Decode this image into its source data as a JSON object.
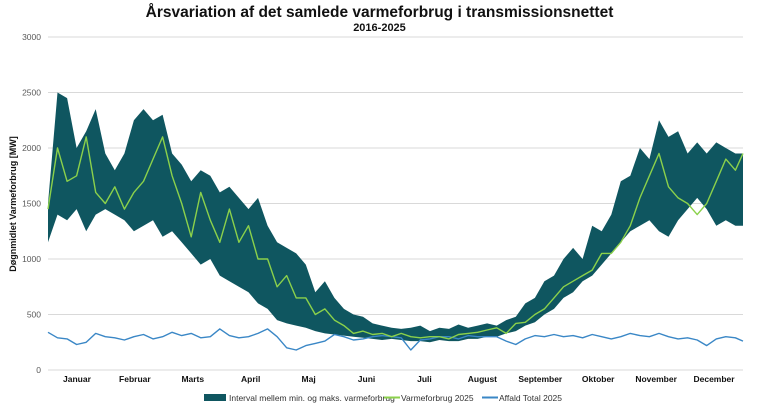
{
  "chart_data": {
    "type": "area",
    "title": "Årsvariation af det samlede varmeforbrug i transmissionsnettet",
    "subtitle": "2016-2025",
    "xlabel": "",
    "ylabel": "Døgnmidlet Varmeforbrug [MW]",
    "ylim": [
      0,
      3000
    ],
    "yticks": [
      0,
      500,
      1000,
      1500,
      2000,
      2500,
      3000
    ],
    "xlim": [
      1,
      365
    ],
    "grid": true,
    "legend_position": "bottom",
    "months": [
      "Januar",
      "Februar",
      "Marts",
      "April",
      "Maj",
      "Juni",
      "Juli",
      "August",
      "September",
      "Oktober",
      "November",
      "December"
    ],
    "x_day": [
      1,
      6,
      11,
      16,
      21,
      26,
      31,
      36,
      41,
      46,
      51,
      56,
      61,
      66,
      71,
      76,
      81,
      86,
      91,
      96,
      101,
      106,
      111,
      116,
      121,
      126,
      131,
      136,
      141,
      146,
      151,
      156,
      161,
      166,
      171,
      176,
      181,
      186,
      191,
      196,
      201,
      206,
      211,
      216,
      221,
      226,
      231,
      236,
      241,
      246,
      251,
      256,
      261,
      266,
      271,
      276,
      281,
      286,
      291,
      296,
      301,
      306,
      311,
      316,
      321,
      326,
      331,
      336,
      341,
      346,
      351,
      356,
      361,
      365
    ],
    "series": [
      {
        "name": "Interval mellem min. og maks. varmeforbrug",
        "kind": "band",
        "color": "#0f5660",
        "max": [
          1500,
          2500,
          2450,
          2000,
          2150,
          2350,
          1950,
          1800,
          1950,
          2250,
          2350,
          2250,
          2300,
          1950,
          1850,
          1700,
          1800,
          1750,
          1600,
          1650,
          1550,
          1450,
          1550,
          1300,
          1150,
          1100,
          1050,
          950,
          700,
          800,
          650,
          550,
          500,
          480,
          420,
          400,
          380,
          370,
          380,
          400,
          350,
          380,
          370,
          410,
          380,
          400,
          420,
          400,
          450,
          480,
          600,
          650,
          800,
          850,
          1000,
          1100,
          1000,
          1300,
          1250,
          1400,
          1700,
          1750,
          2000,
          1900,
          2250,
          2100,
          2150,
          1950,
          2050,
          1950,
          2050,
          2000,
          1950,
          1950
        ],
        "min": [
          1150,
          1400,
          1350,
          1450,
          1250,
          1400,
          1450,
          1400,
          1350,
          1250,
          1300,
          1350,
          1200,
          1250,
          1150,
          1050,
          950,
          1000,
          850,
          800,
          750,
          700,
          600,
          550,
          450,
          420,
          400,
          380,
          350,
          330,
          320,
          310,
          300,
          290,
          280,
          270,
          280,
          270,
          260,
          260,
          250,
          270,
          260,
          260,
          280,
          280,
          300,
          300,
          330,
          350,
          400,
          430,
          500,
          550,
          650,
          700,
          800,
          850,
          950,
          1050,
          1150,
          1250,
          1300,
          1350,
          1250,
          1200,
          1350,
          1450,
          1550,
          1450,
          1300,
          1350,
          1300,
          1300
        ]
      },
      {
        "name": "Varmeforbrug 2025",
        "kind": "line",
        "color": "#8bd14b",
        "values": [
          1450,
          2000,
          1700,
          1750,
          2100,
          1600,
          1500,
          1650,
          1450,
          1600,
          1700,
          1900,
          2100,
          1750,
          1500,
          1200,
          1600,
          1350,
          1150,
          1450,
          1150,
          1300,
          1000,
          1000,
          750,
          850,
          650,
          650,
          500,
          550,
          450,
          400,
          330,
          350,
          320,
          330,
          300,
          330,
          300,
          290,
          300,
          300,
          280,
          320,
          330,
          340,
          360,
          380,
          330,
          420,
          430,
          500,
          550,
          650,
          750,
          800,
          850,
          900,
          1050,
          1050,
          1150,
          1300,
          1550,
          1750,
          1950,
          1650,
          1550,
          1500,
          1400,
          1500,
          1700,
          1900,
          1800,
          1950
        ]
      },
      {
        "name": "Affald Total 2025",
        "kind": "line",
        "color": "#3a87c6",
        "values": [
          340,
          290,
          280,
          230,
          250,
          330,
          300,
          290,
          270,
          300,
          320,
          280,
          300,
          340,
          310,
          330,
          290,
          300,
          370,
          310,
          290,
          300,
          330,
          370,
          300,
          200,
          180,
          220,
          240,
          260,
          320,
          300,
          270,
          280,
          300,
          310,
          300,
          290,
          180,
          270,
          280,
          300,
          300,
          280,
          310,
          300,
          300,
          300,
          260,
          230,
          280,
          310,
          300,
          320,
          300,
          310,
          290,
          320,
          300,
          280,
          300,
          330,
          310,
          300,
          330,
          300,
          280,
          290,
          270,
          220,
          280,
          300,
          290,
          260
        ]
      }
    ]
  }
}
